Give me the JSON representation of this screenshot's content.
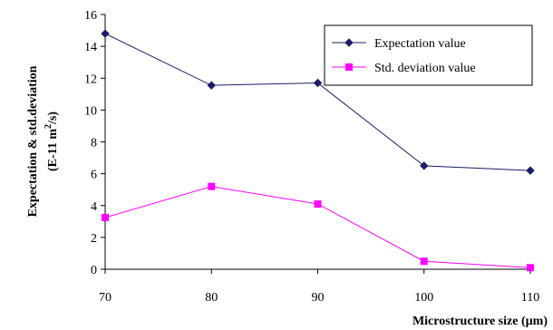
{
  "chart_data": {
    "type": "line",
    "title": "",
    "xlabel": "Microstructure size (µm)",
    "ylabel_line1": "Expectation & std.deviation",
    "ylabel_line2_prefix": "(E-11 m",
    "ylabel_line2_sup": "2",
    "ylabel_line2_suffix": "/s)",
    "x": [
      70,
      80,
      90,
      100,
      110
    ],
    "xlim": [
      70,
      110
    ],
    "ylim": [
      0,
      16
    ],
    "x_ticks": [
      "70",
      "80",
      "90",
      "100",
      "110"
    ],
    "y_ticks": [
      "0",
      "2",
      "4",
      "6",
      "8",
      "10",
      "12",
      "14",
      "16"
    ],
    "grid": false,
    "legend_position": "top-right",
    "series": [
      {
        "name": "Expectation value",
        "values": [
          14.8,
          11.55,
          11.7,
          6.5,
          6.2
        ],
        "color": "#1c1c6b",
        "marker": "diamond"
      },
      {
        "name": "Std. deviation value",
        "values": [
          3.25,
          5.2,
          4.1,
          0.5,
          0.1
        ],
        "color": "#ff00ff",
        "marker": "square"
      }
    ]
  }
}
